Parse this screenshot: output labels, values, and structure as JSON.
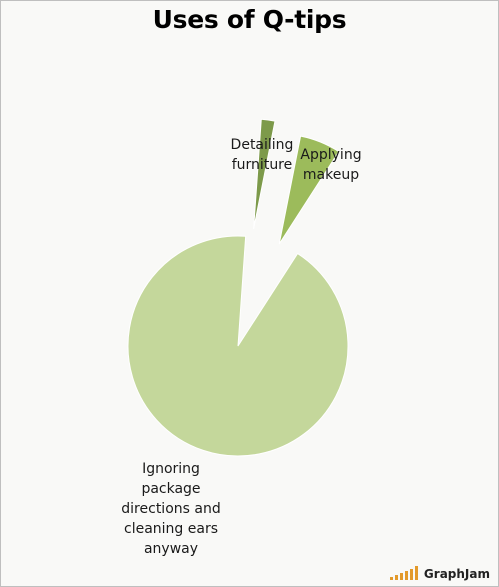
{
  "chart_data": {
    "type": "pie",
    "title": "Uses of Q-tips",
    "slices": [
      {
        "label": "Detailing furniture",
        "value": 2,
        "color": "#7d9a4a",
        "exploded": true
      },
      {
        "label": "Applying makeup",
        "value": 6,
        "color": "#9cbb5b",
        "exploded": true
      },
      {
        "label": "Ignoring package directions and cleaning ears anyway",
        "value": 92,
        "color": "#c4d79b",
        "exploded": false
      }
    ],
    "legend": "none",
    "labels_on_slices": true
  },
  "watermark": {
    "text": "GraphJam",
    "color": "#e39a2b"
  }
}
